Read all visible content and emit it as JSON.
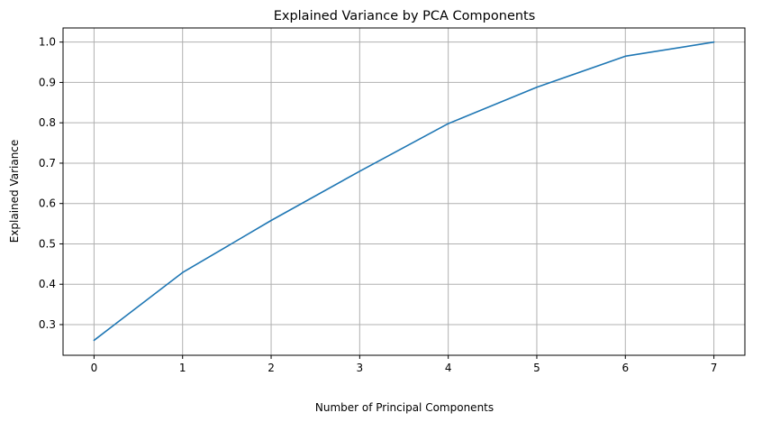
{
  "chart_data": {
    "type": "line",
    "title": "Explained Variance by PCA Components",
    "xlabel": "Number of Principal Components",
    "ylabel": "Explained Variance",
    "x": [
      0,
      1,
      2,
      3,
      4,
      5,
      6,
      7
    ],
    "series": [
      {
        "values": [
          0.261,
          0.429,
          0.558,
          0.68,
          0.798,
          0.888,
          0.965,
          1.0
        ],
        "color": "#1f77b4"
      }
    ],
    "xlim": [
      -0.35,
      7.35
    ],
    "ylim": [
      0.224,
      1.035
    ],
    "xticks": [
      "0",
      "1",
      "2",
      "3",
      "4",
      "5",
      "6",
      "7"
    ],
    "yticks": [
      "0.3",
      "0.4",
      "0.5",
      "0.6",
      "0.7",
      "0.8",
      "0.9",
      "1.0"
    ],
    "grid": true,
    "legend": "none"
  }
}
